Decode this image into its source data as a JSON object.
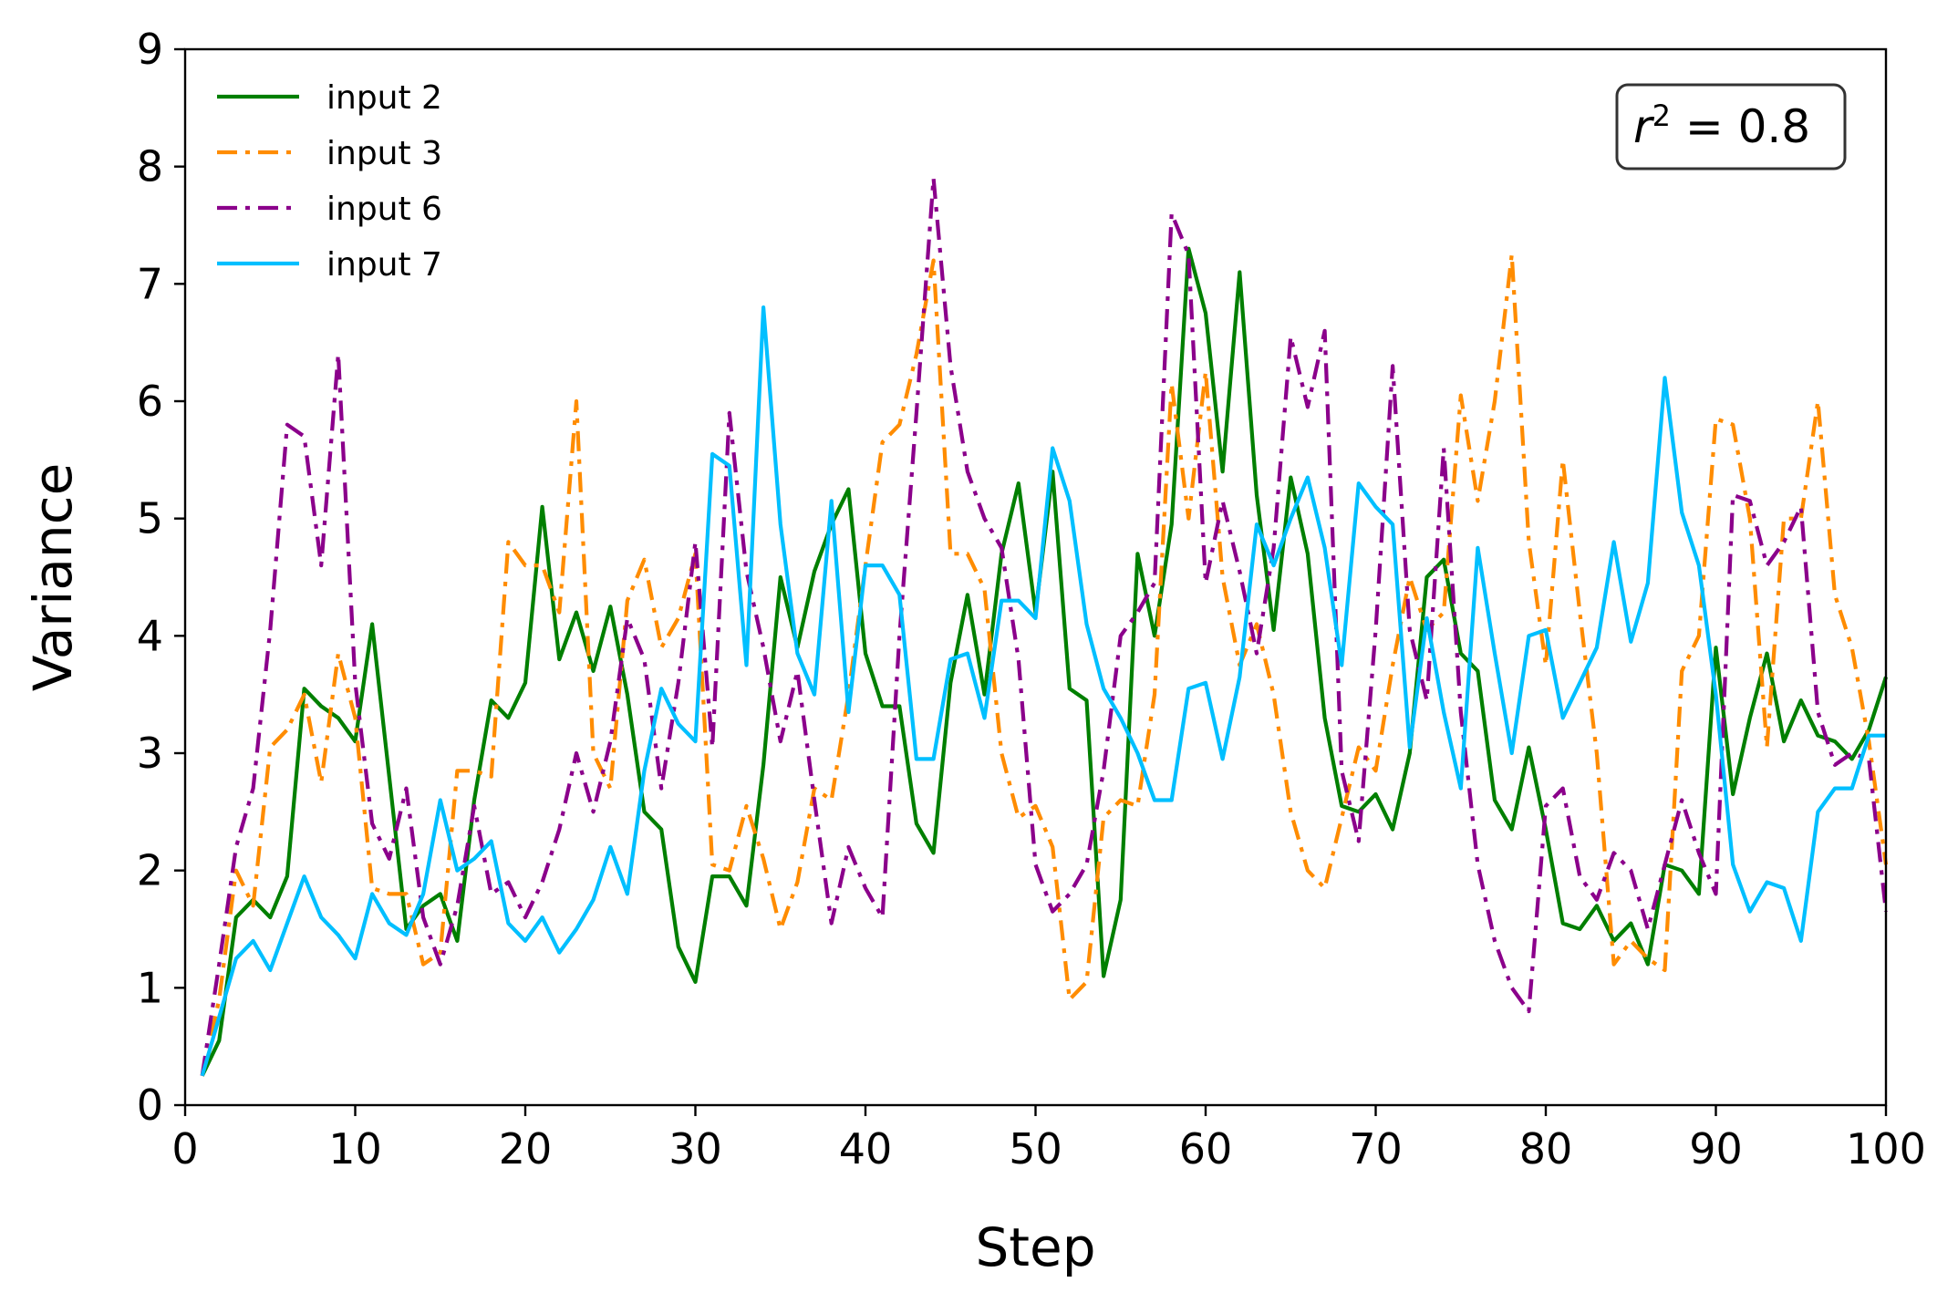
{
  "chart_data": {
    "type": "line",
    "title": "",
    "xlabel": "Step",
    "ylabel": "Variance",
    "xlim": [
      0,
      100
    ],
    "ylim": [
      0,
      9
    ],
    "xticks": [
      0,
      10,
      20,
      30,
      40,
      50,
      60,
      70,
      80,
      90,
      100
    ],
    "yticks": [
      0,
      1,
      2,
      3,
      4,
      5,
      6,
      7,
      8,
      9
    ],
    "grid": false,
    "legend_position": "top-left",
    "annotation": {
      "prefix": "r",
      "exponent": "2",
      "suffix": " = 0.8",
      "position": "top-right"
    },
    "x": [
      1,
      2,
      3,
      4,
      5,
      6,
      7,
      8,
      9,
      10,
      11,
      12,
      13,
      14,
      15,
      16,
      17,
      18,
      19,
      20,
      21,
      22,
      23,
      24,
      25,
      26,
      27,
      28,
      29,
      30,
      31,
      32,
      33,
      34,
      35,
      36,
      37,
      38,
      39,
      40,
      41,
      42,
      43,
      44,
      45,
      46,
      47,
      48,
      49,
      50,
      51,
      52,
      53,
      54,
      55,
      56,
      57,
      58,
      59,
      60,
      61,
      62,
      63,
      64,
      65,
      66,
      67,
      68,
      69,
      70,
      71,
      72,
      73,
      74,
      75,
      76,
      77,
      78,
      79,
      80,
      81,
      82,
      83,
      84,
      85,
      86,
      87,
      88,
      89,
      90,
      91,
      92,
      93,
      94,
      95,
      96,
      97,
      98,
      99,
      100
    ],
    "series": [
      {
        "name": "input 2",
        "color": "#007f00",
        "dash": "solid",
        "values": [
          0.25,
          0.55,
          1.6,
          1.75,
          1.6,
          1.95,
          3.55,
          3.4,
          3.3,
          3.1,
          4.1,
          2.8,
          1.5,
          1.7,
          1.8,
          1.4,
          2.6,
          3.45,
          3.3,
          3.6,
          5.1,
          3.8,
          4.2,
          3.7,
          4.25,
          3.5,
          2.5,
          2.35,
          1.35,
          1.05,
          1.95,
          1.95,
          1.7,
          2.9,
          4.5,
          3.9,
          4.55,
          4.95,
          5.25,
          3.85,
          3.4,
          3.4,
          2.4,
          2.15,
          3.6,
          4.35,
          3.5,
          4.7,
          5.3,
          4.2,
          5.4,
          3.55,
          3.45,
          1.1,
          1.75,
          4.7,
          4.0,
          4.95,
          7.3,
          6.75,
          5.4,
          7.1,
          5.2,
          4.05,
          5.35,
          4.7,
          3.3,
          2.55,
          2.5,
          2.65,
          2.35,
          3.0,
          4.5,
          4.65,
          3.85,
          3.7,
          2.6,
          2.35,
          3.05,
          2.35,
          1.55,
          1.5,
          1.7,
          1.4,
          1.55,
          1.2,
          2.05,
          2.0,
          1.8,
          3.9,
          2.65,
          3.3,
          3.85,
          3.1,
          3.45,
          3.15,
          3.1,
          2.95,
          3.2,
          3.65
        ]
      },
      {
        "name": "input 3",
        "color": "#ff8c00",
        "dash": "dashdot",
        "values": [
          0.25,
          0.9,
          2.0,
          1.7,
          3.05,
          3.2,
          3.5,
          2.75,
          3.85,
          3.3,
          1.85,
          1.8,
          1.8,
          1.2,
          1.3,
          2.85,
          2.85,
          2.8,
          4.8,
          4.6,
          4.6,
          4.2,
          6.0,
          3.0,
          2.7,
          4.3,
          4.65,
          3.9,
          4.15,
          4.7,
          2.05,
          2.0,
          2.55,
          2.1,
          1.5,
          1.9,
          2.7,
          2.6,
          3.5,
          4.6,
          5.65,
          5.8,
          6.4,
          7.2,
          4.7,
          4.7,
          4.4,
          3.0,
          2.45,
          2.55,
          2.2,
          0.9,
          1.05,
          2.45,
          2.6,
          2.55,
          3.5,
          6.15,
          5.0,
          6.25,
          4.5,
          3.75,
          4.1,
          3.5,
          2.5,
          2.0,
          1.85,
          2.45,
          3.05,
          2.85,
          3.75,
          4.5,
          4.05,
          4.2,
          6.05,
          5.15,
          6.0,
          7.25,
          4.8,
          3.75,
          5.5,
          4.2,
          3.0,
          1.2,
          1.4,
          1.25,
          1.15,
          3.7,
          4.0,
          5.85,
          5.8,
          5.0,
          3.05,
          5.0,
          5.0,
          6.0,
          4.35,
          3.9,
          3.1,
          2.05
        ]
      },
      {
        "name": "input 6",
        "color": "#8b008b",
        "dash": "dashdot",
        "values": [
          0.25,
          1.2,
          2.2,
          2.7,
          4.05,
          5.8,
          5.7,
          4.6,
          6.4,
          3.6,
          2.4,
          2.1,
          2.7,
          1.6,
          1.2,
          1.7,
          2.55,
          1.8,
          1.9,
          1.6,
          1.9,
          2.35,
          3.0,
          2.5,
          3.1,
          4.15,
          3.8,
          2.7,
          3.6,
          4.8,
          3.05,
          5.9,
          4.55,
          3.9,
          3.1,
          3.7,
          2.6,
          1.55,
          2.2,
          1.85,
          1.6,
          4.0,
          5.9,
          7.9,
          6.3,
          5.4,
          5.0,
          4.75,
          3.8,
          2.05,
          1.65,
          1.8,
          2.05,
          2.85,
          4.0,
          4.2,
          4.45,
          7.6,
          7.25,
          4.45,
          5.15,
          4.55,
          3.85,
          4.75,
          6.55,
          5.95,
          6.6,
          2.85,
          2.25,
          4.05,
          6.3,
          4.05,
          3.45,
          5.6,
          3.35,
          2.05,
          1.4,
          1.0,
          0.8,
          2.55,
          2.7,
          1.95,
          1.75,
          2.15,
          2.0,
          1.5,
          2.05,
          2.6,
          2.15,
          1.8,
          5.2,
          5.15,
          4.6,
          4.8,
          5.1,
          3.35,
          2.9,
          3.0,
          2.95,
          1.65
        ]
      },
      {
        "name": "input 7",
        "color": "#00bfff",
        "dash": "solid",
        "values": [
          0.25,
          0.75,
          1.25,
          1.4,
          1.15,
          1.55,
          1.95,
          1.6,
          1.45,
          1.25,
          1.8,
          1.55,
          1.45,
          1.8,
          2.6,
          2.0,
          2.1,
          2.25,
          1.55,
          1.4,
          1.6,
          1.3,
          1.5,
          1.75,
          2.2,
          1.8,
          2.85,
          3.55,
          3.25,
          3.1,
          5.55,
          5.45,
          3.75,
          6.8,
          4.95,
          3.85,
          3.5,
          5.15,
          3.35,
          4.6,
          4.6,
          4.35,
          2.95,
          2.95,
          3.8,
          3.85,
          3.3,
          4.3,
          4.3,
          4.15,
          5.6,
          5.15,
          4.1,
          3.55,
          3.3,
          3.0,
          2.6,
          2.6,
          3.55,
          3.6,
          2.95,
          3.65,
          4.95,
          4.6,
          5.0,
          5.35,
          4.75,
          3.75,
          5.3,
          5.1,
          4.95,
          3.05,
          4.15,
          3.35,
          2.7,
          4.75,
          3.85,
          3.0,
          4.0,
          4.05,
          3.3,
          3.6,
          3.9,
          4.8,
          3.95,
          4.45,
          6.2,
          5.05,
          4.6,
          3.5,
          2.05,
          1.65,
          1.9,
          1.85,
          1.4,
          2.5,
          2.7,
          2.7,
          3.15,
          3.15
        ]
      }
    ]
  }
}
